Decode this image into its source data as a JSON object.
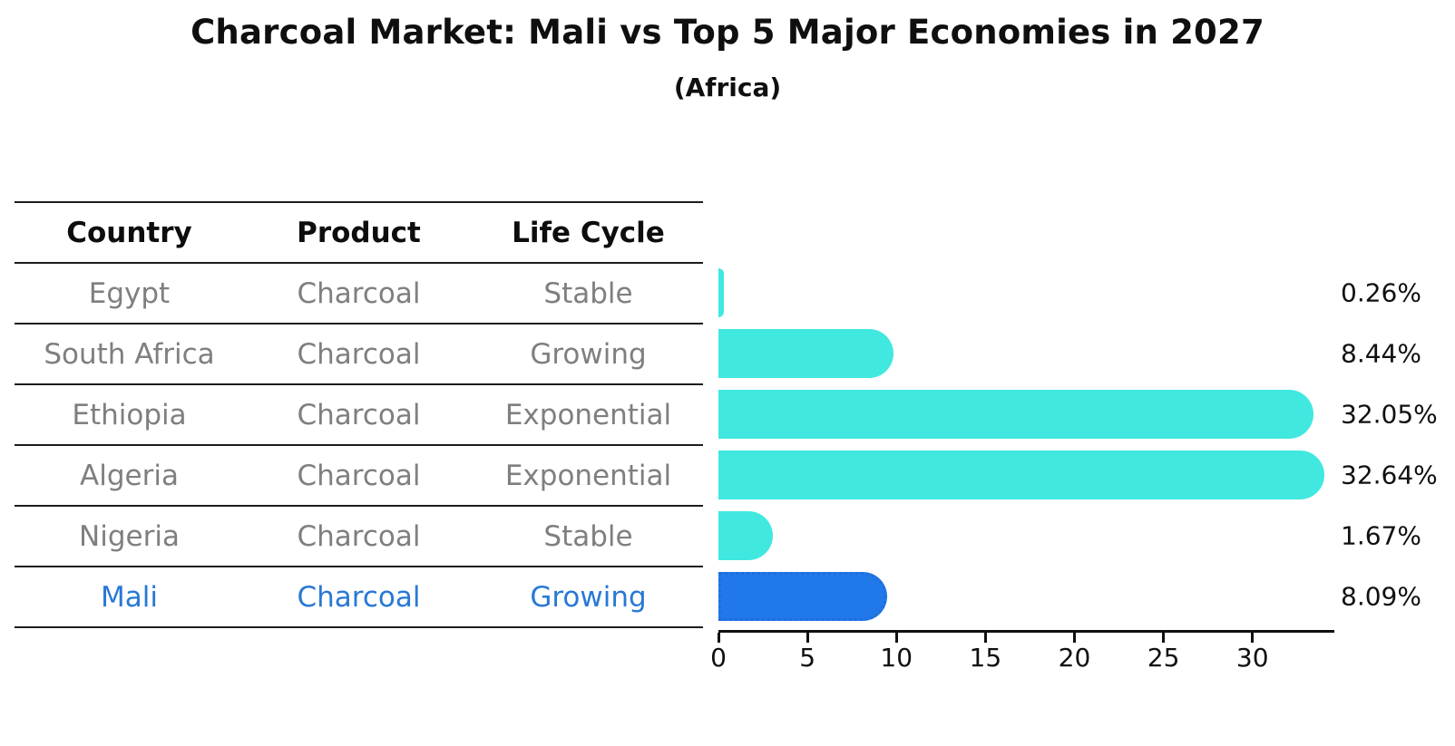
{
  "chart_data": {
    "type": "bar",
    "orientation": "horizontal",
    "title": "Charcoal Market: Mali vs Top 5 Major Economies in 2027",
    "subtitle": "(Africa)",
    "categories": [
      "Egypt",
      "South Africa",
      "Ethiopia",
      "Algeria",
      "Nigeria",
      "Mali"
    ],
    "values": [
      0.26,
      8.44,
      32.05,
      32.64,
      1.67,
      8.09
    ],
    "value_labels": [
      "0.26%",
      "8.44%",
      "32.05%",
      "32.64%",
      "1.67%",
      "8.09%"
    ],
    "x_ticks": [
      0,
      5,
      10,
      15,
      20,
      25,
      30
    ],
    "xlim": [
      0,
      34.6
    ],
    "grid": false,
    "legend": false,
    "bar_color": "#40e8e0",
    "highlight_bar_color": "#2178e8",
    "highlight_text_color": "#2878d6",
    "highlight_index": 5
  },
  "table": {
    "headers": [
      "Country",
      "Product",
      "Life Cycle"
    ],
    "rows": [
      {
        "country": "Egypt",
        "product": "Charcoal",
        "life_cycle": "Stable",
        "highlight": false
      },
      {
        "country": "South Africa",
        "product": "Charcoal",
        "life_cycle": "Growing",
        "highlight": false
      },
      {
        "country": "Ethiopia",
        "product": "Charcoal",
        "life_cycle": "Exponential",
        "highlight": false
      },
      {
        "country": "Algeria",
        "product": "Charcoal",
        "life_cycle": "Exponential",
        "highlight": false
      },
      {
        "country": "Nigeria",
        "product": "Charcoal",
        "life_cycle": "Stable",
        "highlight": false
      },
      {
        "country": "Mali",
        "product": "Charcoal",
        "life_cycle": "Growing",
        "highlight": true
      }
    ]
  }
}
